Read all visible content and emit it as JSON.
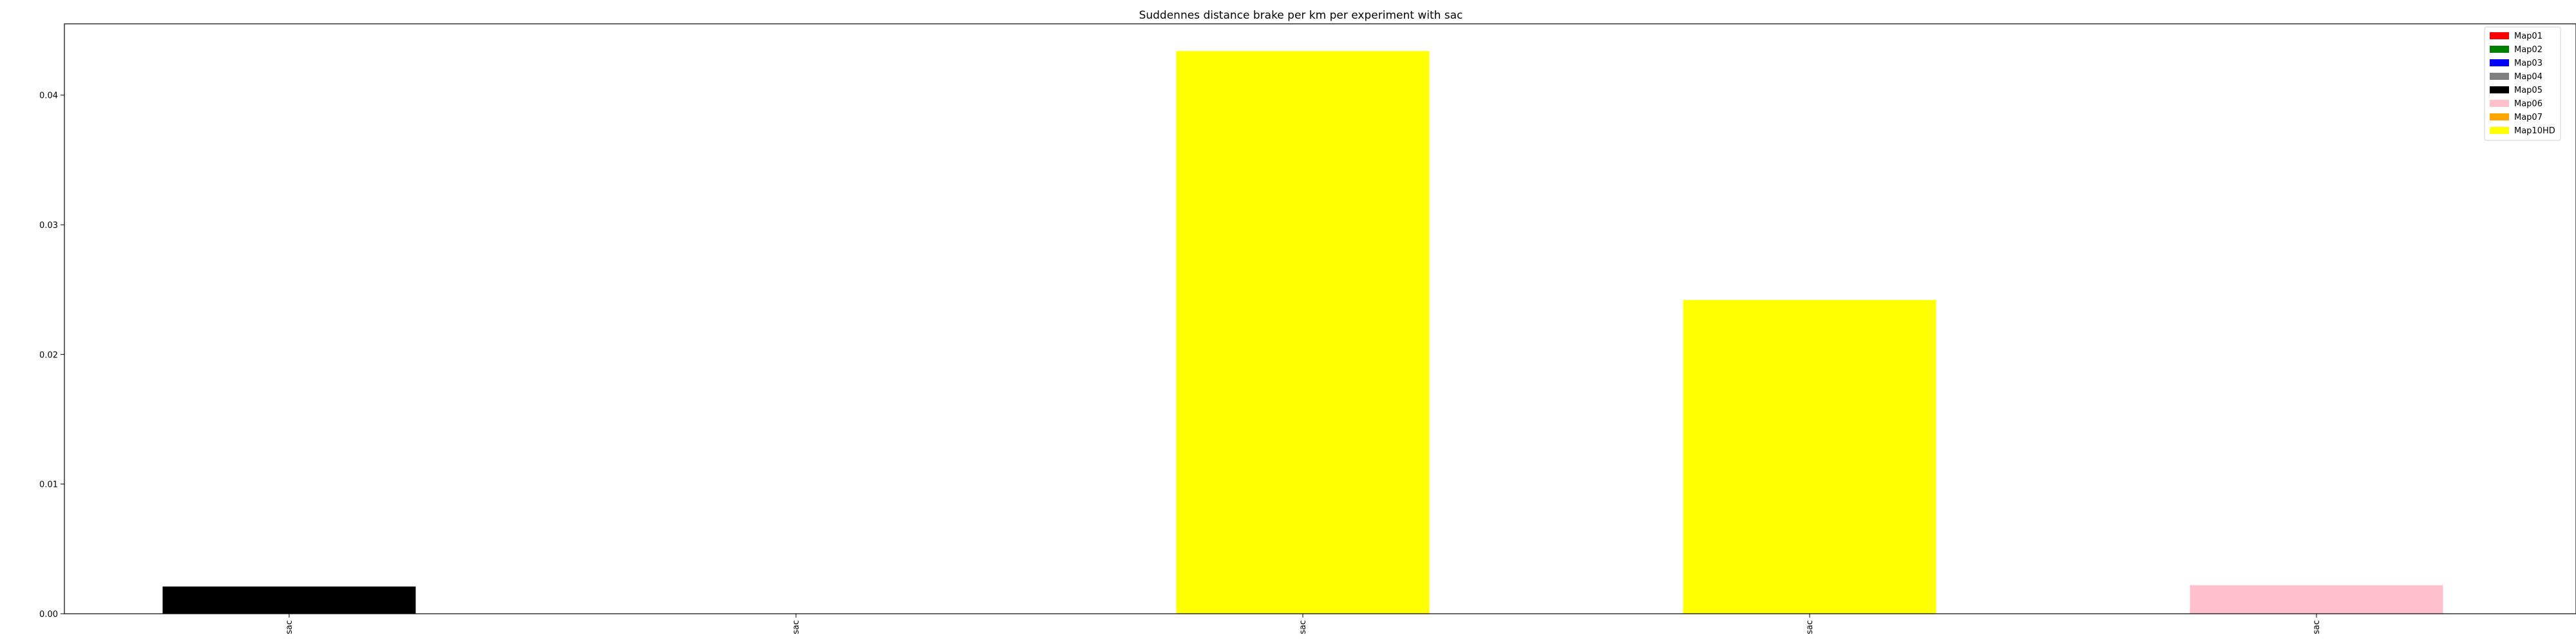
{
  "chart_data": {
    "type": "bar",
    "title": "Suddennes distance brake per km per experiment with sac",
    "xlabel": "",
    "ylabel": "",
    "categories": [
      "sac",
      "sac",
      "sac",
      "sac",
      "sac"
    ],
    "bar_values": [
      0.0021,
      0.0,
      0.0434,
      0.0242,
      0.0022
    ],
    "bar_series": [
      "Map05",
      "Map01",
      "Map10HD",
      "Map10HD",
      "Map06"
    ],
    "ylim": [
      0,
      0.0455
    ],
    "yticks": [
      "0.00",
      "0.01",
      "0.02",
      "0.03",
      "0.04"
    ],
    "ytick_values": [
      0,
      0.01,
      0.02,
      0.03,
      0.04
    ],
    "grid": false,
    "legend_position": "top-right",
    "series": [
      {
        "name": "Map01",
        "color": "#ff0000"
      },
      {
        "name": "Map02",
        "color": "#008000"
      },
      {
        "name": "Map03",
        "color": "#0000ff"
      },
      {
        "name": "Map04",
        "color": "#808080"
      },
      {
        "name": "Map05",
        "color": "#000000"
      },
      {
        "name": "Map06",
        "color": "#ffc0cb"
      },
      {
        "name": "Map07",
        "color": "#ffa500"
      },
      {
        "name": "Map10HD",
        "color": "#ffff00"
      }
    ]
  }
}
